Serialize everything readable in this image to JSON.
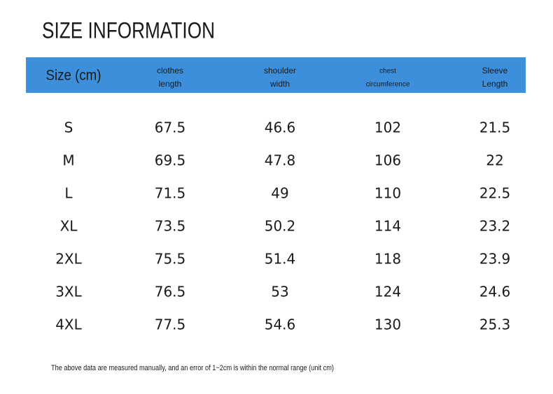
{
  "header": {
    "title": "SIZE INFORMATION"
  },
  "table": {
    "columns": [
      [
        "Size (cm)"
      ],
      [
        "clothes",
        "length"
      ],
      [
        "shoulder",
        "width"
      ],
      [
        "chest",
        "circumference"
      ],
      [
        "Sleeve",
        "Length"
      ]
    ],
    "rows": [
      [
        "S",
        67.5,
        46.6,
        102,
        21.5
      ],
      [
        "M",
        69.5,
        47.8,
        106,
        22
      ],
      [
        "L",
        71.5,
        49,
        110,
        22.5
      ],
      [
        "XL",
        73.5,
        50.2,
        114,
        23.2
      ],
      [
        "2XL",
        75.5,
        51.4,
        118,
        23.9
      ],
      [
        "3XL",
        76.5,
        53,
        124,
        24.6
      ],
      [
        "4XL",
        77.5,
        54.6,
        130,
        25.3
      ]
    ]
  },
  "footnote": "The above data are measured manually, and an error of 1~2cm is within the normal range (unit cm)"
}
